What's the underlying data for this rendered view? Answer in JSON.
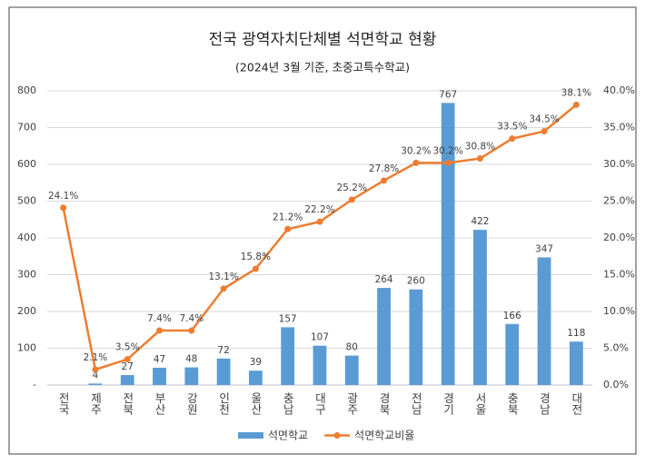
{
  "chart_data": {
    "type": "bar-line",
    "title": "전국 광역자치단체별 석면학교 현황",
    "subtitle": "(2024년 3월 기준, 초중고특수학교)",
    "categories": [
      "전국",
      "제주",
      "전북",
      "부산",
      "강원",
      "인천",
      "울산",
      "충남",
      "대구",
      "광주",
      "경북",
      "전남",
      "경기",
      "서울",
      "충북",
      "경남",
      "대전"
    ],
    "series": [
      {
        "name": "석면학교",
        "type": "bar",
        "color": "#5b9bd5",
        "values": [
          null,
          4,
          27,
          47,
          48,
          72,
          39,
          157,
          107,
          80,
          264,
          260,
          767,
          422,
          166,
          347,
          118
        ]
      },
      {
        "name": "석면학교비율",
        "type": "line",
        "axis": "y2",
        "color": "#ed7d31",
        "values": [
          24.1,
          2.1,
          3.5,
          7.4,
          7.4,
          13.1,
          15.8,
          21.2,
          22.2,
          25.2,
          27.8,
          30.2,
          30.2,
          30.8,
          33.5,
          34.5,
          38.1
        ],
        "value_labels": [
          "24.1%",
          "2.1%",
          "3.5%",
          "7.4%",
          "7.4%",
          "13.1%",
          "15.8%",
          "21.2%",
          "22.2%",
          "25.2%",
          "27.8%",
          "30.2%",
          "30.2%",
          "30.8%",
          "33.5%",
          "34.5%",
          "38.1%"
        ]
      }
    ],
    "ylim": [
      0,
      800
    ],
    "yticks": [
      {
        "value": 0,
        "label": "-"
      },
      100,
      200,
      300,
      400,
      500,
      600,
      700,
      800
    ],
    "y2lim": [
      0,
      40
    ],
    "y2ticks": [
      {
        "value": 0,
        "label": "0.0%"
      },
      {
        "value": 5,
        "label": "5.0%"
      },
      {
        "value": 10,
        "label": "10.0%"
      },
      {
        "value": 15,
        "label": "15.0%"
      },
      {
        "value": 20,
        "label": "20.0%"
      },
      {
        "value": 25,
        "label": "25.0%"
      },
      {
        "value": 30,
        "label": "30.0%"
      },
      {
        "value": 35,
        "label": "35.0%"
      },
      {
        "value": 40,
        "label": "40.0%"
      }
    ],
    "grid": true,
    "legend": "bottom"
  }
}
